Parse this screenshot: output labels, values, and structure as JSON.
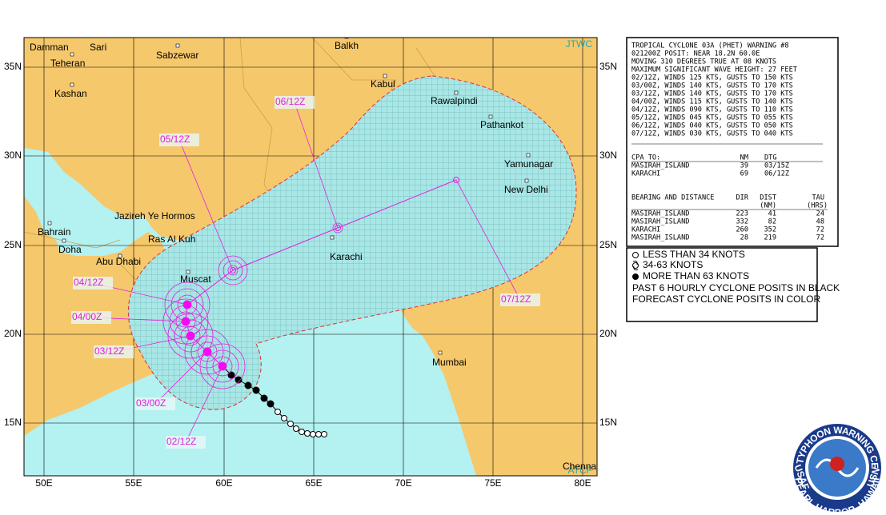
{
  "map": {
    "watermarks": [
      "JTWC",
      "ATCF"
    ],
    "lat_labels": [
      "35N",
      "30N",
      "25N",
      "20N",
      "15N"
    ],
    "lon_labels": [
      "50E",
      "55E",
      "60E",
      "65E",
      "70E",
      "75E",
      "80E"
    ],
    "cities": [
      "Damman",
      "Sari",
      "Sabzewar",
      "Balkh",
      "Teheran",
      "Kashan",
      "Kabul",
      "Rawalpindi",
      "Pathankot",
      "Yamunagar",
      "New Delhi",
      "Jazireh Ye Hormos",
      "Bahrain",
      "Doha",
      "Abu Dhabi",
      "Ras Al Kuh",
      "Muscat",
      "Karachi",
      "Mumbai",
      "Chennai"
    ],
    "forecast_labels": [
      "05/12Z",
      "06/12Z",
      "04/12Z",
      "04/00Z",
      "03/12Z",
      "03/00Z",
      "02/12Z",
      "07/12Z"
    ]
  },
  "warning": {
    "lines": [
      "TROPICAL CYCLONE 03A (PHET) WARNING #8",
      "021200Z POSIT: NEAR 18.2N 60.0E",
      "MOVING 310 DEGREES TRUE AT 08 KNOTS",
      "MAXIMUM SIGNIFICANT WAVE HEIGHT: 27 FEET",
      "02/12Z, WINDS 125 KTS, GUSTS TO 150 KTS",
      "03/00Z, WINDS 140 KTS, GUSTS TO 170 KTS",
      "03/12Z, WINDS 140 KTS, GUSTS TO 170 KTS",
      "04/00Z, WINDS 115 KTS, GUSTS TO 140 KTS",
      "04/12Z, WINDS 090 KTS, GUSTS TO 110 KTS",
      "05/12Z, WINDS 045 KTS, GUSTS TO 055 KTS",
      "06/12Z, WINDS 040 KTS, GUSTS TO 050 KTS",
      "07/12Z, WINDS 030 KTS, GUSTS TO 040 KTS"
    ],
    "cpa": {
      "header": [
        "CPA TO:",
        "NM",
        "DTG"
      ],
      "rows": [
        [
          "MASIRAH_ISLAND",
          "39",
          "03/15Z"
        ],
        [
          "KARACHI",
          "69",
          "06/12Z"
        ]
      ]
    },
    "bearing": {
      "header": [
        "BEARING AND DISTANCE",
        "DIR",
        "DIST",
        "TAU"
      ],
      "subheader": [
        "(NM)",
        "(HRS)"
      ],
      "rows": [
        [
          "MASIRAH_ISLAND",
          "223",
          "41",
          "24"
        ],
        [
          "MASIRAH_ISLAND",
          "332",
          "82",
          "48"
        ],
        [
          "KARACHI",
          "260",
          "352",
          "72"
        ],
        [
          "MASIRAH_ISLAND",
          "28",
          "219",
          "72"
        ]
      ]
    }
  },
  "legend": {
    "items": [
      "LESS THAN 34 KNOTS",
      "34-63 KNOTS",
      "MORE THAN 63 KNOTS"
    ],
    "notes": [
      "PAST 6 HOURLY CYCLONE POSITS IN BLACK",
      "FORECAST CYCLONE POSITS IN COLOR"
    ]
  },
  "seal": {
    "top": "JOINT TYPHOON WARNING CENTER",
    "bottom": "PEARL HARBOR, HAWAII",
    "left": "USAF",
    "right": "USN"
  }
}
